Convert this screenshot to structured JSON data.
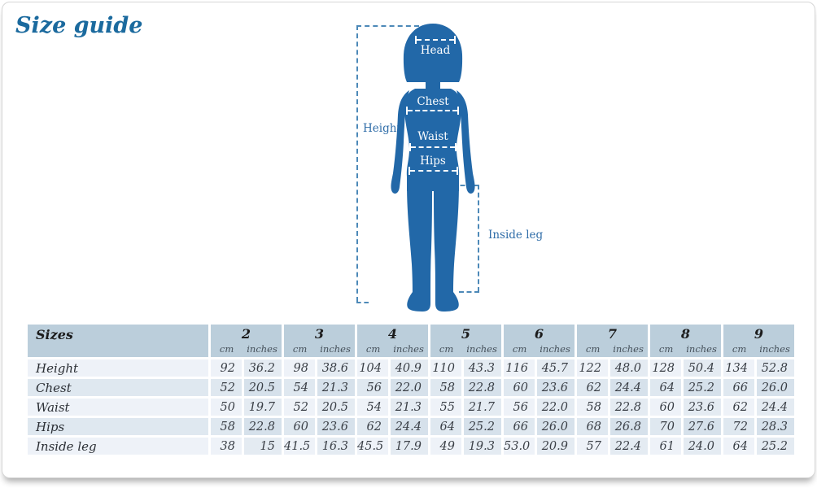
{
  "page": {
    "title": "Size guide"
  },
  "colors": {
    "title": "#1b6a9e",
    "silhouette": "#2268a8",
    "guide_dash": "#4d89b8",
    "guide_label": "#2f6da8",
    "table_header_bg": "#bbcedb",
    "row_light": "#eef2f8",
    "row_dark": "#dfe8f0"
  },
  "figure": {
    "labels": {
      "head": "Head",
      "chest": "Chest",
      "waist": "Waist",
      "hips": "Hips",
      "height": "Height",
      "inside_leg": "Inside leg"
    }
  },
  "table": {
    "corner_label": "Sizes",
    "unit_labels": [
      "cm",
      "inches"
    ],
    "sizes": [
      "2",
      "3",
      "4",
      "5",
      "6",
      "7",
      "8",
      "9"
    ],
    "rows": [
      {
        "label": "Height",
        "values": [
          [
            "92",
            "36.2"
          ],
          [
            "98",
            "38.6"
          ],
          [
            "104",
            "40.9"
          ],
          [
            "110",
            "43.3"
          ],
          [
            "116",
            "45.7"
          ],
          [
            "122",
            "48.0"
          ],
          [
            "128",
            "50.4"
          ],
          [
            "134",
            "52.8"
          ]
        ]
      },
      {
        "label": "Chest",
        "values": [
          [
            "52",
            "20.5"
          ],
          [
            "54",
            "21.3"
          ],
          [
            "56",
            "22.0"
          ],
          [
            "58",
            "22.8"
          ],
          [
            "60",
            "23.6"
          ],
          [
            "62",
            "24.4"
          ],
          [
            "64",
            "25.2"
          ],
          [
            "66",
            "26.0"
          ]
        ]
      },
      {
        "label": "Waist",
        "values": [
          [
            "50",
            "19.7"
          ],
          [
            "52",
            "20.5"
          ],
          [
            "54",
            "21.3"
          ],
          [
            "55",
            "21.7"
          ],
          [
            "56",
            "22.0"
          ],
          [
            "58",
            "22.8"
          ],
          [
            "60",
            "23.6"
          ],
          [
            "62",
            "24.4"
          ]
        ]
      },
      {
        "label": "Hips",
        "values": [
          [
            "58",
            "22.8"
          ],
          [
            "60",
            "23.6"
          ],
          [
            "62",
            "24.4"
          ],
          [
            "64",
            "25.2"
          ],
          [
            "66",
            "26.0"
          ],
          [
            "68",
            "26.8"
          ],
          [
            "70",
            "27.6"
          ],
          [
            "72",
            "28.3"
          ]
        ]
      },
      {
        "label": "Inside leg",
        "values": [
          [
            "38",
            "15"
          ],
          [
            "41.5",
            "16.3"
          ],
          [
            "45.5",
            "17.9"
          ],
          [
            "49",
            "19.3"
          ],
          [
            "53.0",
            "20.9"
          ],
          [
            "57",
            "22.4"
          ],
          [
            "61",
            "24.0"
          ],
          [
            "64",
            "25.2"
          ]
        ]
      }
    ]
  }
}
